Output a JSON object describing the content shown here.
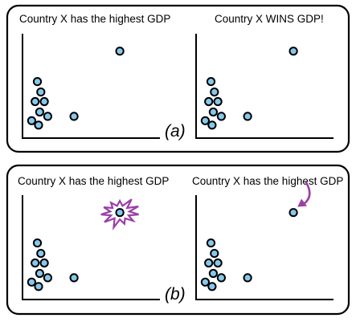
{
  "panel_a": {
    "label": "(a)",
    "left_title": "Country X has the highest GDP",
    "right_title": "Country X WINS GDP!"
  },
  "panel_b": {
    "label": "(b)",
    "left_title": "Country X has the highest GDP",
    "right_title": "Country X has the highest GDP"
  },
  "colors": {
    "point_fill": "#86c8ec",
    "emphasis": "#9b3fa7"
  },
  "chart_data": [
    {
      "type": "scatter",
      "points": [
        [
          1.3,
          6.5
        ],
        [
          1.6,
          5.3
        ],
        [
          1.1,
          4.2
        ],
        [
          1.9,
          4.2
        ],
        [
          1.5,
          3.0
        ],
        [
          2.2,
          2.5
        ],
        [
          0.8,
          2.0
        ],
        [
          1.4,
          1.5
        ],
        [
          4.5,
          2.5
        ],
        [
          8.5,
          10.0
        ]
      ],
      "highlight_index": 9,
      "annotation": "none"
    },
    {
      "type": "scatter",
      "points": [
        [
          1.3,
          6.5
        ],
        [
          1.6,
          5.3
        ],
        [
          1.1,
          4.2
        ],
        [
          1.9,
          4.2
        ],
        [
          1.5,
          3.0
        ],
        [
          2.2,
          2.5
        ],
        [
          0.8,
          2.0
        ],
        [
          1.4,
          1.5
        ],
        [
          4.5,
          2.5
        ],
        [
          8.5,
          10.0
        ]
      ],
      "highlight_index": 9,
      "annotation": "none"
    },
    {
      "type": "scatter",
      "points": [
        [
          1.3,
          6.5
        ],
        [
          1.6,
          5.3
        ],
        [
          1.1,
          4.2
        ],
        [
          1.9,
          4.2
        ],
        [
          1.5,
          3.0
        ],
        [
          2.2,
          2.5
        ],
        [
          0.8,
          2.0
        ],
        [
          1.4,
          1.5
        ],
        [
          4.5,
          2.5
        ],
        [
          8.5,
          10.0
        ]
      ],
      "highlight_index": 9,
      "annotation": "starburst"
    },
    {
      "type": "scatter",
      "points": [
        [
          1.3,
          6.5
        ],
        [
          1.6,
          5.3
        ],
        [
          1.1,
          4.2
        ],
        [
          1.9,
          4.2
        ],
        [
          1.5,
          3.0
        ],
        [
          2.2,
          2.5
        ],
        [
          0.8,
          2.0
        ],
        [
          1.4,
          1.5
        ],
        [
          4.5,
          2.5
        ],
        [
          8.5,
          10.0
        ]
      ],
      "highlight_index": 9,
      "annotation": "arrow"
    }
  ]
}
